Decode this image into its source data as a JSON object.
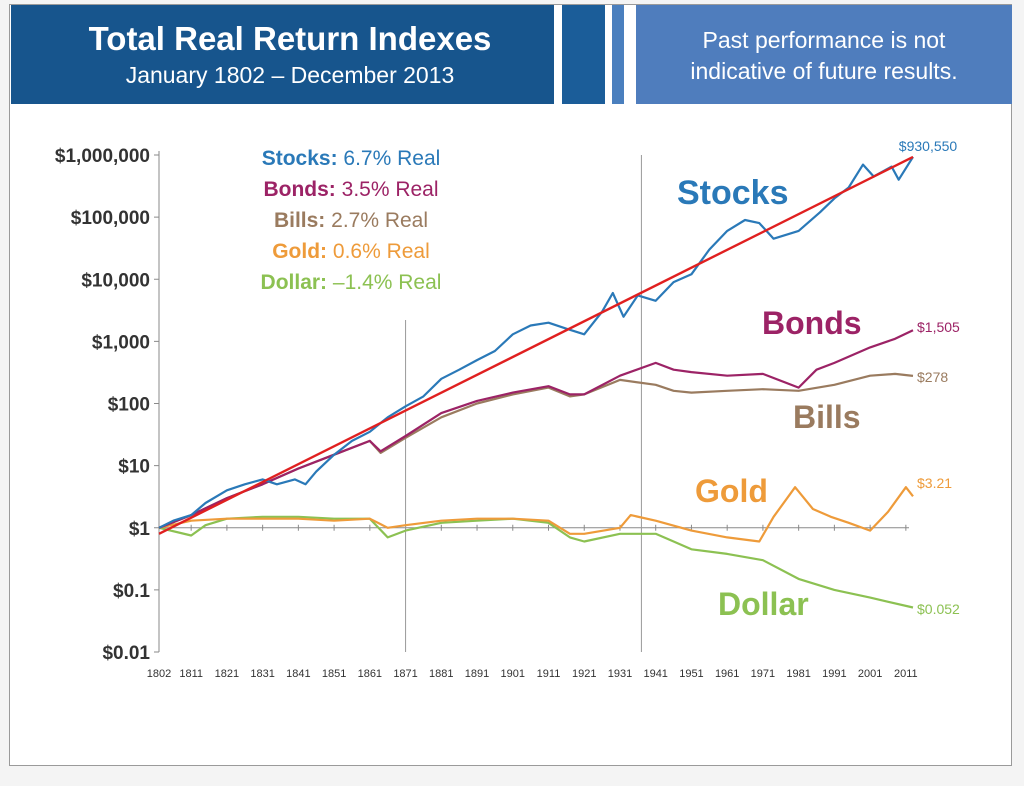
{
  "header": {
    "title": "Total Real Return Indexes",
    "subtitle": "January 1802 – December 2013",
    "disclaimer_line1": "Past performance is not",
    "disclaimer_line2": "indicative of future results."
  },
  "legend": [
    {
      "name": "Stocks:",
      "rate": "6.7% Real",
      "color": "#2a79b8"
    },
    {
      "name": "Bonds:",
      "rate": "3.5% Real",
      "color": "#9c2366"
    },
    {
      "name": "Bills:",
      "rate": "2.7% Real",
      "color": "#9a7b5f"
    },
    {
      "name": "Gold:",
      "rate": "0.6% Real",
      "color": "#ee9b3a"
    },
    {
      "name": "Dollar:",
      "rate": "–1.4% Real",
      "color": "#8cc152"
    }
  ],
  "chart_data": {
    "type": "line",
    "title": "Total Real Return Indexes",
    "y_scale": "log",
    "ylim": [
      0.01,
      1000000
    ],
    "xlim": [
      1802,
      2013
    ],
    "y_ticks": [
      {
        "value": 1000000,
        "label": "$1,000,000"
      },
      {
        "value": 100000,
        "label": "$100,000"
      },
      {
        "value": 10000,
        "label": "$10,000"
      },
      {
        "value": 1000,
        "label": "$1,000"
      },
      {
        "value": 100,
        "label": "$100"
      },
      {
        "value": 10,
        "label": "$10"
      },
      {
        "value": 1,
        "label": "$1"
      },
      {
        "value": 0.1,
        "label": "$0.1"
      },
      {
        "value": 0.01,
        "label": "$0.01"
      }
    ],
    "x_ticks": [
      1802,
      1811,
      1821,
      1831,
      1841,
      1851,
      1861,
      1871,
      1881,
      1891,
      1901,
      1911,
      1921,
      1931,
      1941,
      1951,
      1961,
      1971,
      1981,
      1991,
      2001,
      2011
    ],
    "reference_lines_x": [
      1871,
      1937
    ],
    "trend_line": {
      "color": "#e02020",
      "points": [
        [
          1802,
          0.8
        ],
        [
          2013,
          930550
        ]
      ]
    },
    "series": [
      {
        "name": "Stocks",
        "color": "#2a79b8",
        "end_label": "$930,550",
        "points": [
          [
            1802,
            1
          ],
          [
            1806,
            1.3
          ],
          [
            1811,
            1.6
          ],
          [
            1815,
            2.5
          ],
          [
            1821,
            4
          ],
          [
            1826,
            5
          ],
          [
            1831,
            6
          ],
          [
            1835,
            5
          ],
          [
            1840,
            6
          ],
          [
            1843,
            5
          ],
          [
            1846,
            8
          ],
          [
            1851,
            15
          ],
          [
            1856,
            25
          ],
          [
            1861,
            35
          ],
          [
            1866,
            60
          ],
          [
            1871,
            90
          ],
          [
            1876,
            130
          ],
          [
            1881,
            250
          ],
          [
            1886,
            350
          ],
          [
            1891,
            500
          ],
          [
            1896,
            700
          ],
          [
            1901,
            1300
          ],
          [
            1906,
            1800
          ],
          [
            1911,
            2000
          ],
          [
            1916,
            1600
          ],
          [
            1921,
            1300
          ],
          [
            1926,
            3000
          ],
          [
            1929,
            6000
          ],
          [
            1932,
            2500
          ],
          [
            1936,
            5500
          ],
          [
            1941,
            4500
          ],
          [
            1946,
            9000
          ],
          [
            1951,
            12000
          ],
          [
            1956,
            30000
          ],
          [
            1961,
            60000
          ],
          [
            1966,
            90000
          ],
          [
            1970,
            80000
          ],
          [
            1974,
            45000
          ],
          [
            1981,
            60000
          ],
          [
            1987,
            120000
          ],
          [
            1991,
            200000
          ],
          [
            1995,
            300000
          ],
          [
            1999,
            700000
          ],
          [
            2002,
            450000
          ],
          [
            2007,
            650000
          ],
          [
            2009,
            400000
          ],
          [
            2013,
            930550
          ]
        ]
      },
      {
        "name": "Bonds",
        "color": "#9c2366",
        "end_label": "$1,505",
        "points": [
          [
            1802,
            1
          ],
          [
            1811,
            1.6
          ],
          [
            1821,
            3
          ],
          [
            1831,
            5
          ],
          [
            1841,
            9
          ],
          [
            1851,
            15
          ],
          [
            1861,
            25
          ],
          [
            1864,
            17
          ],
          [
            1871,
            30
          ],
          [
            1881,
            70
          ],
          [
            1891,
            110
          ],
          [
            1901,
            150
          ],
          [
            1911,
            190
          ],
          [
            1917,
            140
          ],
          [
            1921,
            140
          ],
          [
            1931,
            280
          ],
          [
            1941,
            450
          ],
          [
            1946,
            350
          ],
          [
            1951,
            320
          ],
          [
            1961,
            280
          ],
          [
            1971,
            300
          ],
          [
            1981,
            180
          ],
          [
            1986,
            350
          ],
          [
            1991,
            450
          ],
          [
            2001,
            800
          ],
          [
            2008,
            1100
          ],
          [
            2013,
            1505
          ]
        ]
      },
      {
        "name": "Bills",
        "color": "#9a7b5f",
        "end_label": "$278",
        "points": [
          [
            1802,
            1
          ],
          [
            1811,
            1.6
          ],
          [
            1821,
            3
          ],
          [
            1831,
            5
          ],
          [
            1841,
            9
          ],
          [
            1851,
            15
          ],
          [
            1861,
            25
          ],
          [
            1864,
            16
          ],
          [
            1871,
            28
          ],
          [
            1881,
            60
          ],
          [
            1891,
            100
          ],
          [
            1901,
            140
          ],
          [
            1911,
            180
          ],
          [
            1917,
            130
          ],
          [
            1921,
            140
          ],
          [
            1931,
            240
          ],
          [
            1941,
            200
          ],
          [
            1946,
            160
          ],
          [
            1951,
            150
          ],
          [
            1961,
            160
          ],
          [
            1971,
            170
          ],
          [
            1981,
            160
          ],
          [
            1991,
            200
          ],
          [
            2001,
            280
          ],
          [
            2008,
            300
          ],
          [
            2013,
            278
          ]
        ]
      },
      {
        "name": "Gold",
        "color": "#ee9b3a",
        "end_label": "$3.21",
        "points": [
          [
            1802,
            1
          ],
          [
            1811,
            1.3
          ],
          [
            1821,
            1.4
          ],
          [
            1831,
            1.4
          ],
          [
            1841,
            1.4
          ],
          [
            1851,
            1.3
          ],
          [
            1861,
            1.4
          ],
          [
            1866,
            1.0
          ],
          [
            1871,
            1.1
          ],
          [
            1881,
            1.3
          ],
          [
            1891,
            1.4
          ],
          [
            1901,
            1.4
          ],
          [
            1911,
            1.3
          ],
          [
            1917,
            0.8
          ],
          [
            1921,
            0.8
          ],
          [
            1931,
            1.0
          ],
          [
            1934,
            1.6
          ],
          [
            1941,
            1.3
          ],
          [
            1951,
            0.9
          ],
          [
            1961,
            0.7
          ],
          [
            1970,
            0.6
          ],
          [
            1974,
            1.5
          ],
          [
            1980,
            4.5
          ],
          [
            1985,
            2.0
          ],
          [
            1990,
            1.5
          ],
          [
            1995,
            1.2
          ],
          [
            2001,
            0.9
          ],
          [
            2006,
            1.8
          ],
          [
            2011,
            4.5
          ],
          [
            2013,
            3.21
          ]
        ]
      },
      {
        "name": "Dollar",
        "color": "#8cc152",
        "end_label": "$0.052",
        "points": [
          [
            1802,
            1
          ],
          [
            1811,
            0.75
          ],
          [
            1815,
            1.1
          ],
          [
            1821,
            1.4
          ],
          [
            1831,
            1.5
          ],
          [
            1841,
            1.5
          ],
          [
            1851,
            1.4
          ],
          [
            1861,
            1.4
          ],
          [
            1866,
            0.7
          ],
          [
            1871,
            0.9
          ],
          [
            1881,
            1.2
          ],
          [
            1891,
            1.3
          ],
          [
            1901,
            1.4
          ],
          [
            1911,
            1.2
          ],
          [
            1917,
            0.7
          ],
          [
            1921,
            0.6
          ],
          [
            1931,
            0.8
          ],
          [
            1941,
            0.8
          ],
          [
            1946,
            0.6
          ],
          [
            1951,
            0.45
          ],
          [
            1961,
            0.38
          ],
          [
            1971,
            0.3
          ],
          [
            1981,
            0.15
          ],
          [
            1991,
            0.1
          ],
          [
            2001,
            0.075
          ],
          [
            2013,
            0.052
          ]
        ]
      }
    ],
    "series_labels": [
      {
        "name": "Stocks",
        "text": "Stocks",
        "color": "#2a79b8"
      },
      {
        "name": "Bonds",
        "text": "Bonds",
        "color": "#9c2366"
      },
      {
        "name": "Bills",
        "text": "Bills",
        "color": "#9a7b5f"
      },
      {
        "name": "Gold",
        "text": "Gold",
        "color": "#ee9b3a"
      },
      {
        "name": "Dollar",
        "text": "Dollar",
        "color": "#8cc152"
      }
    ]
  }
}
